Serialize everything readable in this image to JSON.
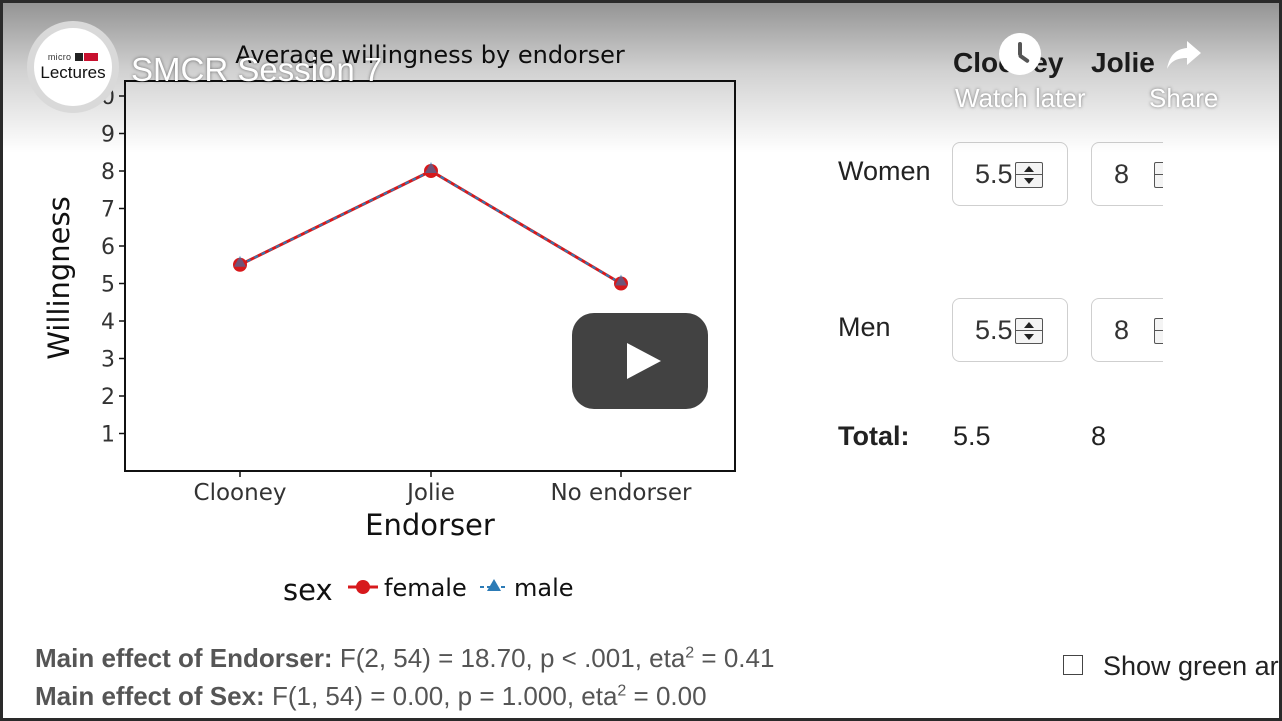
{
  "video": {
    "title": "SMCR Session 7",
    "channel_logo": {
      "small_text": "micro",
      "main_text": "Lectures"
    },
    "actions": {
      "watch_later": "Watch later",
      "share": "Share"
    },
    "play_icon": "play-icon"
  },
  "chart_data": {
    "type": "line",
    "title": "Average willingness by endorser",
    "xlabel": "Endorser",
    "ylabel": "Willingness",
    "categories": [
      "Clooney",
      "Jolie",
      "No endorser"
    ],
    "ylim": [
      0,
      10.4
    ],
    "yticks": [
      1,
      2,
      3,
      4,
      5,
      6,
      7,
      8,
      9,
      10
    ],
    "legend_title": "sex",
    "legend_position": "bottom",
    "grid": false,
    "series": [
      {
        "name": "female",
        "values": [
          5.5,
          8,
          5
        ],
        "color": "#d7191c",
        "marker": "circle",
        "linestyle": "solid"
      },
      {
        "name": "male",
        "values": [
          5.5,
          8,
          5
        ],
        "color": "#2c7bb6",
        "marker": "triangle",
        "linestyle": "dashed"
      }
    ]
  },
  "table": {
    "columns": [
      "Clooney",
      "Jolie"
    ],
    "rows": [
      {
        "label": "Women",
        "values": [
          "5.5",
          "8"
        ]
      },
      {
        "label": "Men",
        "values": [
          "5.5",
          "8"
        ]
      }
    ],
    "total": {
      "label": "Total:",
      "values": [
        "5.5",
        "8"
      ]
    }
  },
  "stats": {
    "endorser": {
      "label": "Main effect of Endorser:",
      "text": "F(2, 54) = 18.70, p < .001, eta",
      "sup": "2",
      "tail": " = 0.41"
    },
    "sex": {
      "label": "Main effect of Sex:",
      "text": "F(1, 54) = 0.00, p = 1.000, eta",
      "sup": "2",
      "tail": " = 0.00"
    }
  },
  "checkbox": {
    "label": "Show green ar",
    "checked": false
  }
}
